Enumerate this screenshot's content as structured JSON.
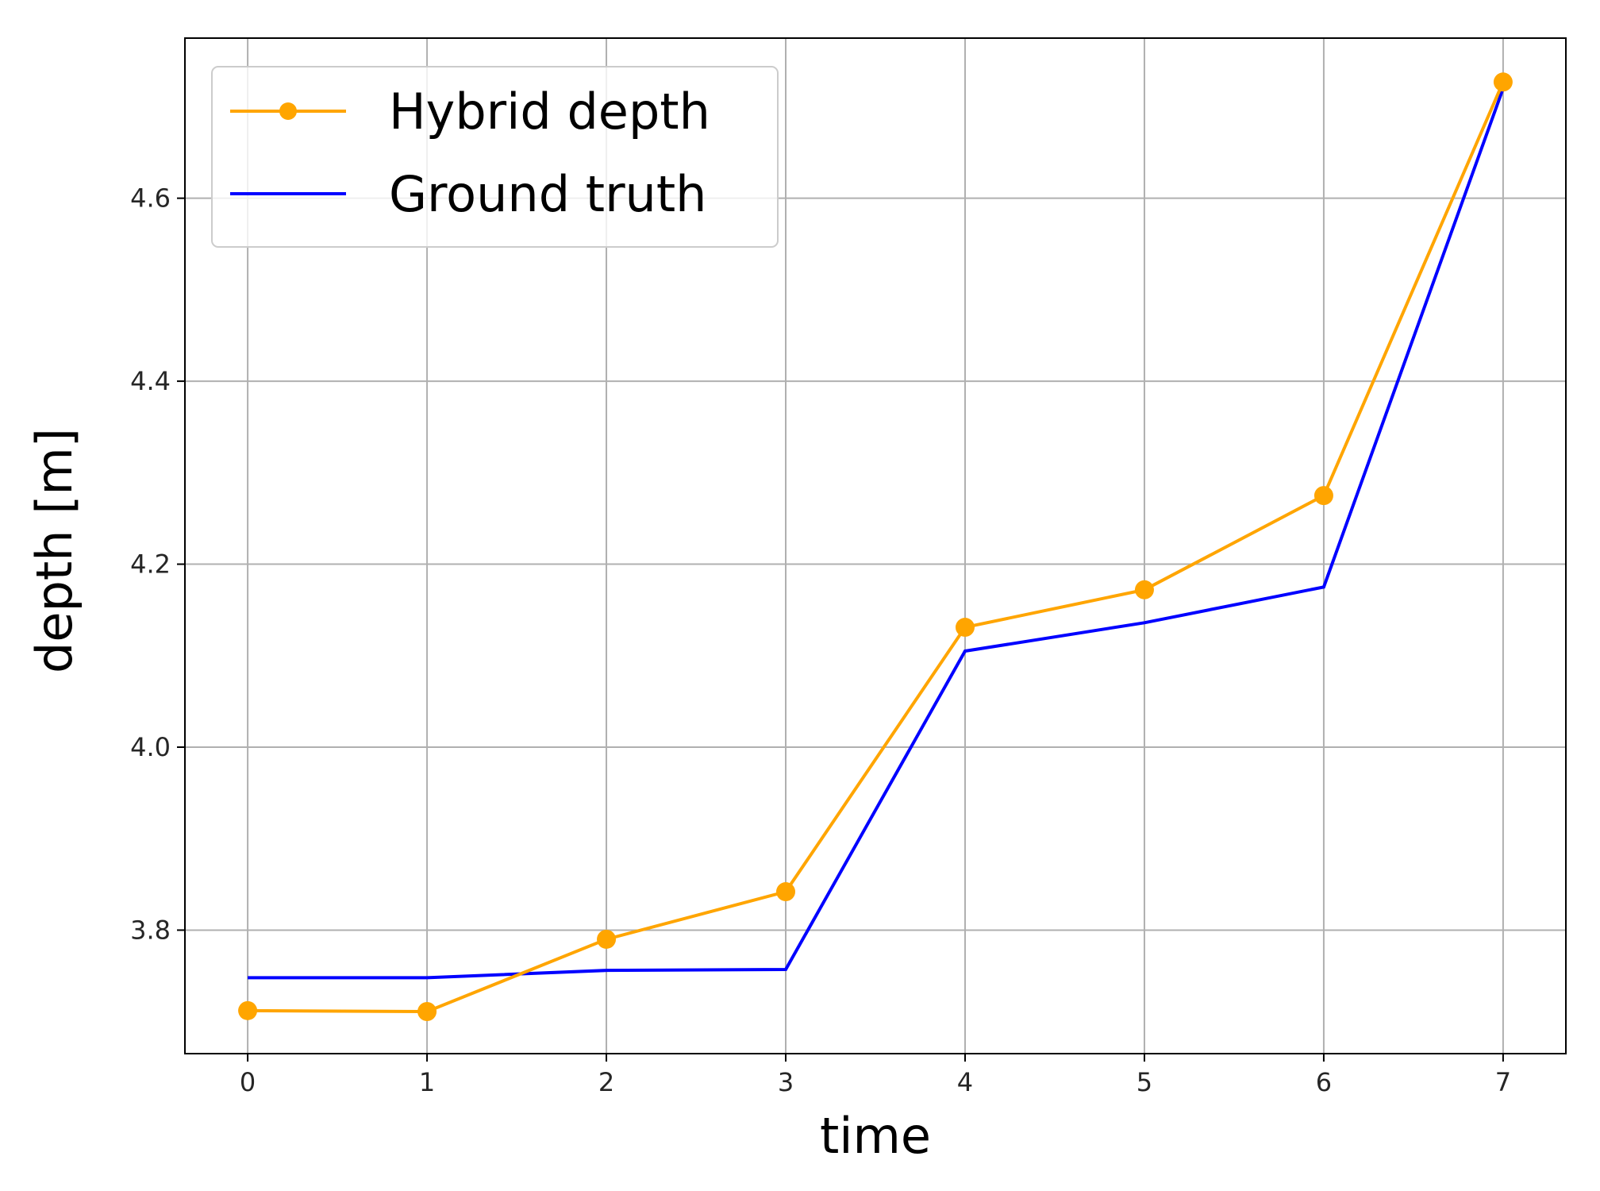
{
  "chart_data": {
    "type": "line",
    "title": "",
    "xlabel": "time",
    "ylabel": "depth [m]",
    "x": [
      0,
      1,
      2,
      3,
      4,
      5,
      6,
      7
    ],
    "xlim": [
      -0.35,
      7.35
    ],
    "ylim": [
      3.665,
      4.775
    ],
    "xticks": [
      0,
      1,
      2,
      3,
      4,
      5,
      6,
      7
    ],
    "xtick_labels": [
      "0",
      "1",
      "2",
      "3",
      "4",
      "5",
      "6",
      "7"
    ],
    "yticks": [
      3.8,
      4.0,
      4.2,
      4.4,
      4.6
    ],
    "ytick_labels": [
      "3.8",
      "4.0",
      "4.2",
      "4.4",
      "4.6"
    ],
    "grid": true,
    "legend_position": "top-left",
    "series": [
      {
        "name": "Hybrid depth",
        "color": "#ffa500",
        "marker": "circle",
        "values": [
          3.712,
          3.711,
          3.79,
          3.842,
          4.131,
          4.172,
          4.275,
          4.727
        ]
      },
      {
        "name": "Ground truth",
        "color": "#0000ff",
        "marker": "none",
        "values": [
          3.748,
          3.748,
          3.756,
          3.757,
          4.105,
          4.136,
          4.175,
          4.72
        ]
      }
    ]
  }
}
